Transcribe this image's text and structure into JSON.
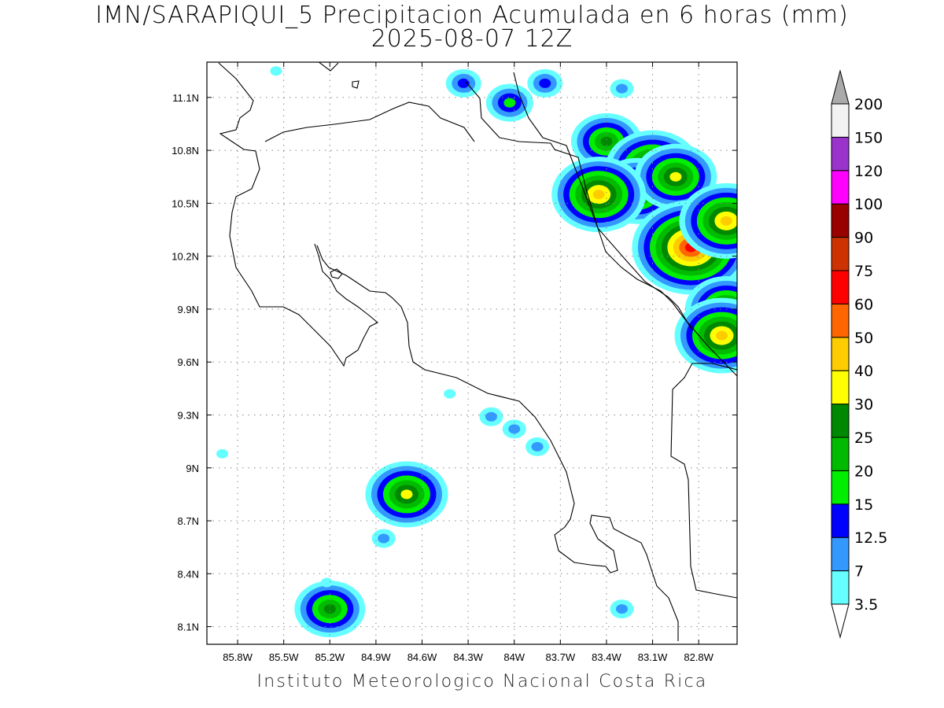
{
  "title": {
    "line1": "IMN/SARAPIQUI_5 Precipitacion Acumulada en 6 horas (mm)",
    "line2": "2025-08-07 12Z"
  },
  "footer": "Instituto Meteorologico Nacional Costa Rica",
  "map": {
    "lon_range": [
      -86.0,
      -82.55
    ],
    "lat_range": [
      8.0,
      11.3
    ],
    "lon_ticks": [
      {
        "value": -85.8,
        "label": "85.8W"
      },
      {
        "value": -85.5,
        "label": "85.5W"
      },
      {
        "value": -85.2,
        "label": "85.2W"
      },
      {
        "value": -84.9,
        "label": "84.9W"
      },
      {
        "value": -84.6,
        "label": "84.6W"
      },
      {
        "value": -84.3,
        "label": "84.3W"
      },
      {
        "value": -84.0,
        "label": "84W"
      },
      {
        "value": -83.7,
        "label": "83.7W"
      },
      {
        "value": -83.4,
        "label": "83.4W"
      },
      {
        "value": -83.1,
        "label": "83.1W"
      },
      {
        "value": -82.8,
        "label": "82.8W"
      }
    ],
    "lat_ticks": [
      {
        "value": 11.1,
        "label": "11.1N"
      },
      {
        "value": 10.8,
        "label": "10.8N"
      },
      {
        "value": 10.5,
        "label": "10.5N"
      },
      {
        "value": 10.2,
        "label": "10.2N"
      },
      {
        "value": 9.9,
        "label": "9.9N"
      },
      {
        "value": 9.6,
        "label": "9.6N"
      },
      {
        "value": 9.3,
        "label": "9.3N"
      },
      {
        "value": 9.0,
        "label": "9N"
      },
      {
        "value": 8.7,
        "label": "8.7N"
      },
      {
        "value": 8.4,
        "label": "8.4N"
      },
      {
        "value": 8.1,
        "label": "8.1N"
      }
    ],
    "grid": true
  },
  "colorbar": {
    "levels": [
      "3.5",
      "7",
      "12.5",
      "15",
      "20",
      "25",
      "30",
      "40",
      "50",
      "60",
      "75",
      "90",
      "100",
      "120",
      "150",
      "200"
    ],
    "colors": [
      "#66ffff",
      "#3399ff",
      "#0000ff",
      "#00ee00",
      "#00bb00",
      "#008800",
      "#ffff00",
      "#ffcc00",
      "#ff6600",
      "#ff0000",
      "#cc3300",
      "#990000",
      "#ff00ff",
      "#9933cc",
      "#f2f2f2"
    ],
    "over_color": "#aaaaaa",
    "under_color": "#ffffff"
  },
  "precip_cells": [
    {
      "lon": -84.33,
      "lat": 11.18,
      "value": 12.5
    },
    {
      "lon": -84.03,
      "lat": 11.07,
      "value": 15
    },
    {
      "lon": -83.8,
      "lat": 11.18,
      "value": 12.5
    },
    {
      "lon": -83.3,
      "lat": 11.15,
      "value": 7
    },
    {
      "lon": -83.4,
      "lat": 10.85,
      "value": 25
    },
    {
      "lon": -83.1,
      "lat": 10.7,
      "value": 40
    },
    {
      "lon": -83.2,
      "lat": 10.57,
      "value": 30
    },
    {
      "lon": -82.95,
      "lat": 10.65,
      "value": 30
    },
    {
      "lon": -82.85,
      "lat": 10.25,
      "value": 60
    },
    {
      "lon": -82.62,
      "lat": 10.4,
      "value": 40
    },
    {
      "lon": -82.62,
      "lat": 9.9,
      "value": 30
    },
    {
      "lon": -82.65,
      "lat": 9.75,
      "value": 40
    },
    {
      "lon": -83.45,
      "lat": 10.55,
      "value": 40
    },
    {
      "lon": -84.7,
      "lat": 8.85,
      "value": 30
    },
    {
      "lon": -85.2,
      "lat": 8.2,
      "value": 25
    },
    {
      "lon": -84.15,
      "lat": 9.29,
      "value": 7
    },
    {
      "lon": -84.0,
      "lat": 9.22,
      "value": 7
    },
    {
      "lon": -83.85,
      "lat": 9.12,
      "value": 7
    },
    {
      "lon": -83.3,
      "lat": 8.2,
      "value": 7
    },
    {
      "lon": -84.42,
      "lat": 9.42,
      "value": 3.5
    },
    {
      "lon": -84.85,
      "lat": 8.6,
      "value": 7
    },
    {
      "lon": -85.22,
      "lat": 8.35,
      "value": 3.5
    },
    {
      "lon": -85.9,
      "lat": 9.08,
      "value": 3.5
    },
    {
      "lon": -85.55,
      "lat": 11.25,
      "value": 3.5
    }
  ]
}
